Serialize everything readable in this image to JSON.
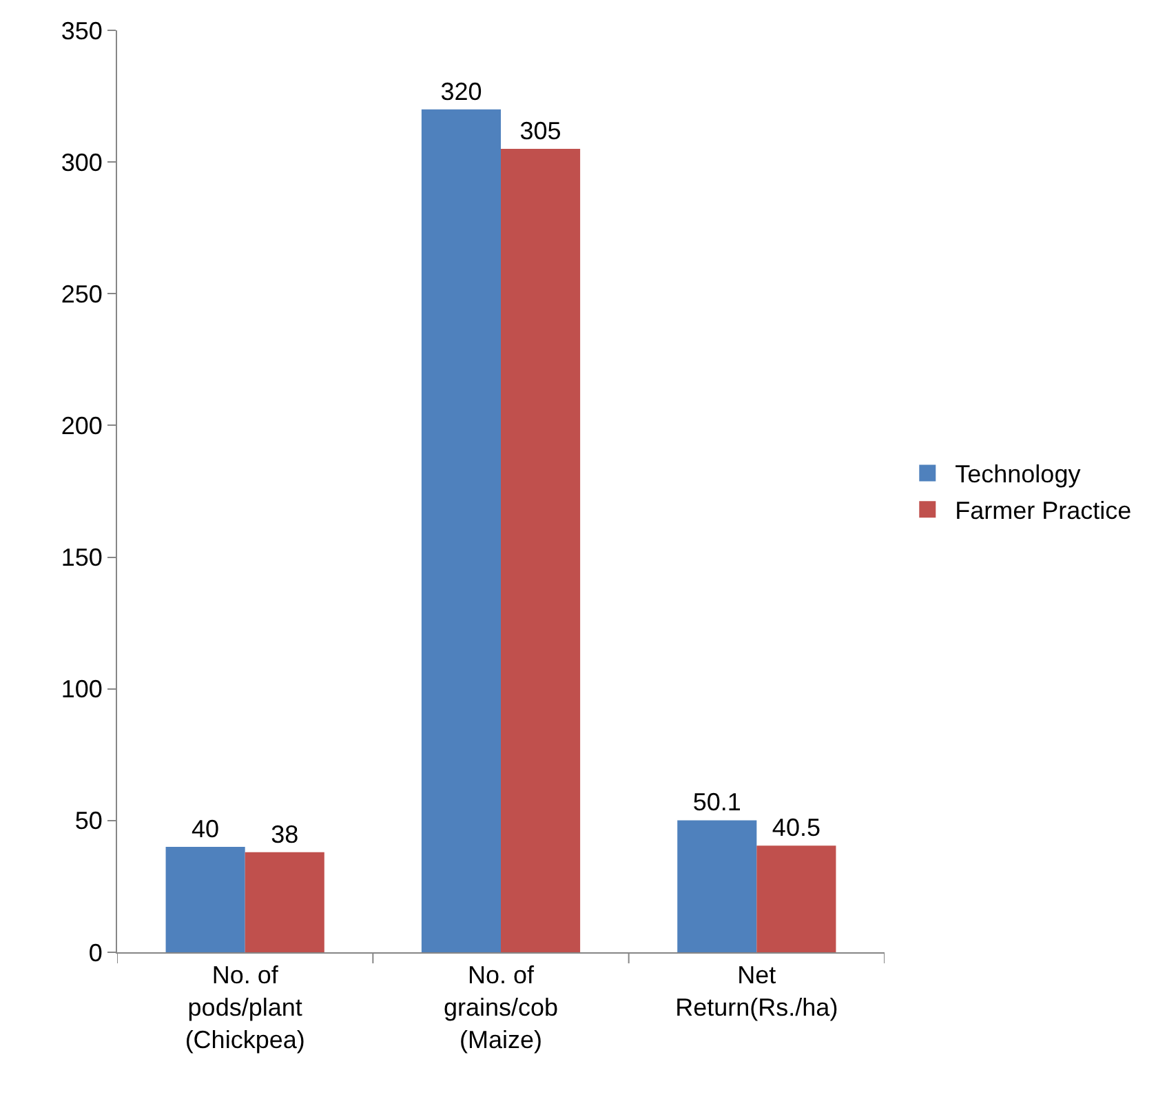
{
  "chart_data": {
    "type": "bar",
    "categories": [
      "No. of\npods/plant\n(Chickpea)",
      "No. of\ngrains/cob\n(Maize)",
      "Net\nReturn(Rs./ha)"
    ],
    "series": [
      {
        "name": "Technology",
        "color": "#4f81bd",
        "values": [
          40,
          320,
          50.1
        ]
      },
      {
        "name": "Farmer Practice",
        "color": "#c0504d",
        "values": [
          38,
          305,
          40.5
        ]
      }
    ],
    "ylim": [
      0,
      350
    ],
    "yticks": [
      0,
      50,
      100,
      150,
      200,
      250,
      300,
      350
    ],
    "data_labels": true,
    "legend": "right"
  }
}
